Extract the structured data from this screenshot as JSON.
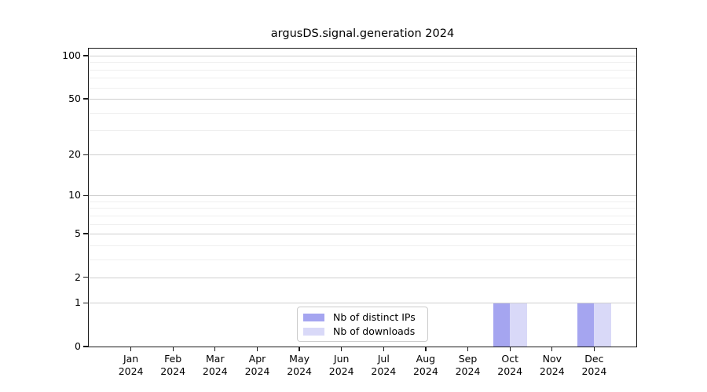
{
  "chart_data": {
    "type": "bar",
    "title": "argusDS.signal.generation 2024",
    "categories": [
      "Jan",
      "Feb",
      "Mar",
      "Apr",
      "May",
      "Jun",
      "Jul",
      "Aug",
      "Sep",
      "Oct",
      "Nov",
      "Dec"
    ],
    "year_label": "2024",
    "series": [
      {
        "name": "Nb of distinct IPs",
        "color": "#a5a5f0",
        "values": [
          0,
          0,
          0,
          0,
          0,
          0,
          0,
          0,
          0,
          1,
          0,
          1
        ]
      },
      {
        "name": "Nb of downloads",
        "color": "#d9d9f8",
        "values": [
          0,
          0,
          0,
          0,
          0,
          0,
          0,
          0,
          0,
          1,
          0,
          1
        ]
      }
    ],
    "xlabel": "",
    "ylabel": "",
    "yscale": "log1p",
    "ylim": [
      0,
      112
    ],
    "y_ticks": [
      0,
      1,
      2,
      5,
      10,
      20,
      50,
      100
    ],
    "y_minor_ticks": [
      3,
      4,
      6,
      7,
      8,
      9,
      30,
      40,
      60,
      70,
      80,
      90
    ],
    "grid": "both",
    "legend_position": "lower center"
  }
}
